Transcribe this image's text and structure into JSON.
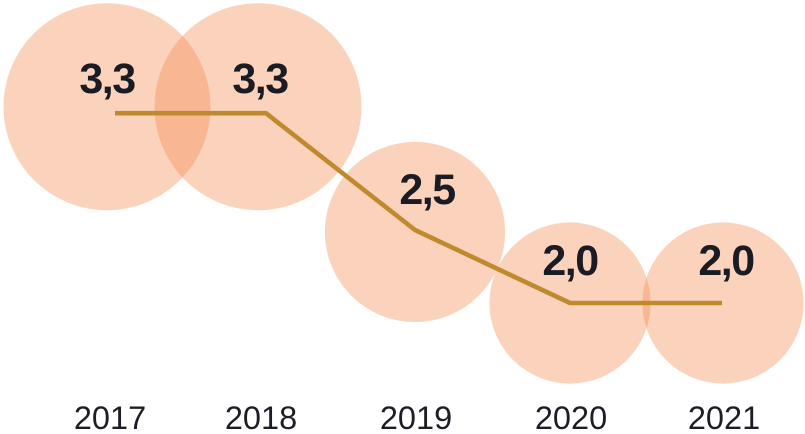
{
  "chart_data": {
    "type": "line",
    "subtype": "bubble-line-combo",
    "title": "",
    "xlabel": "",
    "ylabel": "",
    "categories": [
      "2017",
      "2018",
      "2019",
      "2020",
      "2021"
    ],
    "series": [
      {
        "name": "value",
        "values": [
          3.3,
          3.3,
          2.5,
          2.0,
          2.0
        ],
        "value_labels": [
          "3,3",
          "3,3",
          "2,5",
          "2,0",
          "2,0"
        ]
      }
    ],
    "decimal_separator": "comma",
    "bubble_area_proportional_to_value": true,
    "grid": false,
    "legend": false,
    "y_axis_visible": false,
    "x_axis_position": "bottom",
    "colors": {
      "bubble_base": "#F38243",
      "bubble_opacity": 0.35,
      "bubble_rendered_single": "#FBD4BD",
      "bubble_rendered_overlap": "#F8BB97",
      "line": "#BF892D",
      "value_text": "#1A1B23",
      "year_text": "#1D1D26",
      "background": "#FFFFFF"
    }
  }
}
